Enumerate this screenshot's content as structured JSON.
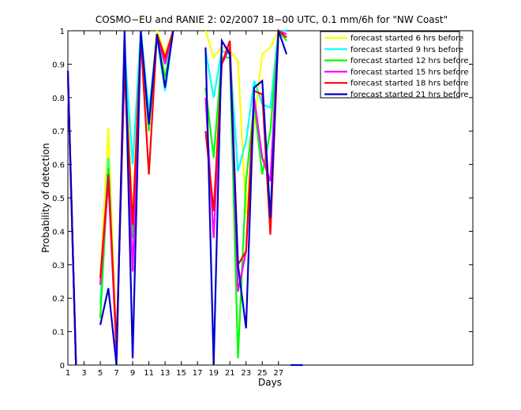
{
  "chart_data": {
    "type": "line",
    "title": "COSMO−EU and RANIE 2: 02/2007 18−00 UTC, 0.1 mm/6h for \"NW Coast\"",
    "xlabel": "Days",
    "ylabel": "Probability of detection",
    "xlim": [
      1,
      51
    ],
    "ylim": [
      0,
      1
    ],
    "x_ticks": [
      1,
      3,
      5,
      7,
      9,
      11,
      13,
      15,
      17,
      19,
      21,
      23,
      25,
      27
    ],
    "y_ticks": [
      0,
      0.1,
      0.2,
      0.3,
      0.4,
      0.5,
      0.6,
      0.7,
      0.8,
      0.9,
      1
    ],
    "y_tick_labels": [
      "0",
      "0.1",
      "0.2",
      "0.3",
      "0.4",
      "0.5",
      "0.6",
      "0.7",
      "0.8",
      "0.9",
      "1"
    ],
    "grid": false,
    "legend_position": "top-right",
    "series": [
      {
        "name": "forecast started 6 hrs before",
        "color": "#ffff00",
        "segments": [
          [
            [
              1,
              0.87
            ],
            [
              2,
              0
            ]
          ],
          [
            [
              5,
              0.25
            ],
            [
              6,
              0.71
            ],
            [
              7,
              0.05
            ],
            [
              8,
              0.96
            ],
            [
              9,
              0.43
            ],
            [
              10,
              1.0
            ],
            [
              11,
              0.75
            ],
            [
              12,
              1.0
            ],
            [
              13,
              0.93
            ],
            [
              14,
              1.0
            ]
          ],
          [
            [
              18,
              1.0
            ],
            [
              19,
              0.92
            ],
            [
              20,
              0.95
            ],
            [
              21,
              0.94
            ],
            [
              22,
              0.91
            ],
            [
              23,
              0.45
            ],
            [
              24,
              0.72
            ],
            [
              25,
              0.93
            ],
            [
              26,
              0.95
            ],
            [
              27,
              1.0
            ],
            [
              28,
              1.0
            ]
          ]
        ]
      },
      {
        "name": "forecast started 9 hrs before",
        "color": "#00ffff",
        "segments": [
          [
            [
              1,
              0.86
            ],
            [
              2,
              0
            ]
          ],
          [
            [
              5,
              0.18
            ],
            [
              6,
              0.62
            ],
            [
              7,
              0.03
            ],
            [
              8,
              0.95
            ],
            [
              9,
              0.6
            ],
            [
              10,
              1.0
            ],
            [
              11,
              0.76
            ],
            [
              12,
              0.98
            ],
            [
              13,
              0.82
            ],
            [
              14,
              1.0
            ]
          ],
          [
            [
              18,
              0.94
            ],
            [
              19,
              0.8
            ],
            [
              20,
              0.94
            ],
            [
              21,
              0.93
            ],
            [
              22,
              0.58
            ],
            [
              23,
              0.67
            ],
            [
              24,
              0.85
            ],
            [
              25,
              0.78
            ],
            [
              26,
              0.77
            ],
            [
              27,
              1.0
            ],
            [
              28,
              1.0
            ]
          ]
        ]
      },
      {
        "name": "forecast started 12 hrs before",
        "color": "#00ff00",
        "segments": [
          [
            [
              1,
              0.87
            ],
            [
              2,
              0
            ]
          ],
          [
            [
              5,
              0.14
            ],
            [
              6,
              0.59
            ],
            [
              7,
              0.03
            ],
            [
              8,
              0.92
            ],
            [
              9,
              0.38
            ],
            [
              10,
              0.99
            ],
            [
              11,
              0.7
            ],
            [
              12,
              0.99
            ],
            [
              13,
              0.86
            ],
            [
              14,
              1.0
            ]
          ],
          [
            [
              18,
              0.83
            ],
            [
              19,
              0.62
            ],
            [
              20,
              0.92
            ],
            [
              21,
              0.92
            ],
            [
              22,
              0.02
            ],
            [
              23,
              0.55
            ],
            [
              24,
              0.78
            ],
            [
              25,
              0.57
            ],
            [
              26,
              0.7
            ],
            [
              27,
              1.0
            ],
            [
              28,
              0.97
            ]
          ]
        ]
      },
      {
        "name": "forecast started 15 hrs before",
        "color": "#ff00ff",
        "segments": [
          [
            [
              1,
              0.86
            ],
            [
              2,
              0
            ]
          ],
          [
            [
              5,
              0.24
            ],
            [
              6,
              0.55
            ],
            [
              7,
              0.04
            ],
            [
              8,
              0.9
            ],
            [
              9,
              0.28
            ],
            [
              10,
              0.98
            ],
            [
              11,
              0.72
            ],
            [
              12,
              0.99
            ],
            [
              13,
              0.9
            ],
            [
              14,
              1.0
            ]
          ],
          [
            [
              18,
              0.8
            ],
            [
              19,
              0.38
            ],
            [
              20,
              0.9
            ],
            [
              21,
              0.95
            ],
            [
              22,
              0.22
            ],
            [
              23,
              0.34
            ],
            [
              24,
              0.8
            ],
            [
              25,
              0.62
            ],
            [
              26,
              0.55
            ],
            [
              27,
              1.0
            ],
            [
              28,
              0.99
            ]
          ]
        ]
      },
      {
        "name": "forecast started 18 hrs before",
        "color": "#ff0000",
        "segments": [
          [
            [
              1,
              0.88
            ],
            [
              2,
              0
            ]
          ],
          [
            [
              5,
              0.26
            ],
            [
              6,
              0.57
            ],
            [
              7,
              0.06
            ],
            [
              8,
              0.89
            ],
            [
              9,
              0.42
            ],
            [
              10,
              0.98
            ],
            [
              11,
              0.57
            ],
            [
              12,
              0.99
            ],
            [
              13,
              0.92
            ],
            [
              14,
              1.0
            ]
          ],
          [
            [
              18,
              0.7
            ],
            [
              19,
              0.46
            ],
            [
              20,
              0.9
            ],
            [
              21,
              0.97
            ],
            [
              22,
              0.3
            ],
            [
              23,
              0.34
            ],
            [
              24,
              0.82
            ],
            [
              25,
              0.81
            ],
            [
              26,
              0.39
            ],
            [
              27,
              1.0
            ],
            [
              28,
              0.98
            ]
          ]
        ]
      },
      {
        "name": "forecast started 21 hrs before",
        "color": "#0000cc",
        "segments": [
          [
            [
              1,
              0.88
            ],
            [
              2,
              0
            ]
          ],
          [
            [
              5,
              0.12
            ],
            [
              6,
              0.23
            ],
            [
              7,
              0.0
            ],
            [
              8,
              1.0
            ],
            [
              9,
              0.02
            ],
            [
              10,
              1.0
            ],
            [
              11,
              0.72
            ],
            [
              12,
              0.99
            ],
            [
              13,
              0.83
            ],
            [
              14,
              1.0
            ]
          ],
          [
            [
              18,
              0.95
            ],
            [
              19,
              0.0
            ],
            [
              20,
              0.97
            ],
            [
              21,
              0.93
            ],
            [
              22,
              0.3
            ],
            [
              23,
              0.11
            ],
            [
              24,
              0.83
            ],
            [
              25,
              0.85
            ],
            [
              26,
              0.44
            ],
            [
              27,
              1.0
            ],
            [
              28,
              0.93
            ]
          ]
        ]
      }
    ],
    "baseline_segment": {
      "name": "post-period zero line",
      "color": "#0000cc",
      "points": [
        [
          28.5,
          0
        ],
        [
          30,
          0
        ]
      ]
    }
  }
}
